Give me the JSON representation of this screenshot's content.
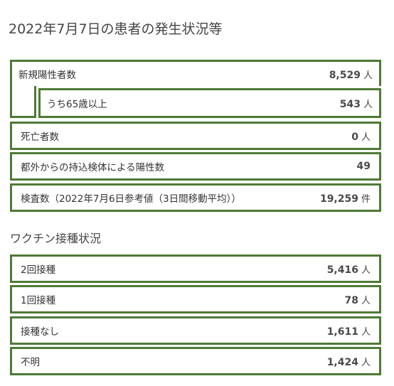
{
  "title": "2022年7月7日の患者の発生状況等",
  "patients": {
    "new_positive": {
      "label": "新規陽性者数",
      "value": "8,529",
      "unit": "人"
    },
    "over65": {
      "label": "うち65歳以上",
      "value": "543",
      "unit": "人"
    },
    "deaths": {
      "label": "死亡者数",
      "value": "0",
      "unit": "人"
    },
    "outside_tokyo": {
      "label": "都外からの持込検体による陽性数",
      "value": "49",
      "unit": ""
    },
    "tests": {
      "label": "検査数（2022年7月6日参考値（3日間移動平均））",
      "value": "19,259",
      "unit": "件"
    }
  },
  "vaccine": {
    "heading": "ワクチン接種状況",
    "rows": [
      {
        "label": "2回接種",
        "value": "5,416",
        "unit": "人"
      },
      {
        "label": "1回接種",
        "value": "78",
        "unit": "人"
      },
      {
        "label": "接種なし",
        "value": "1,611",
        "unit": "人"
      },
      {
        "label": "不明",
        "value": "1,424",
        "unit": "人"
      }
    ]
  },
  "colors": {
    "border": "#4e7a35",
    "text": "#333333"
  }
}
